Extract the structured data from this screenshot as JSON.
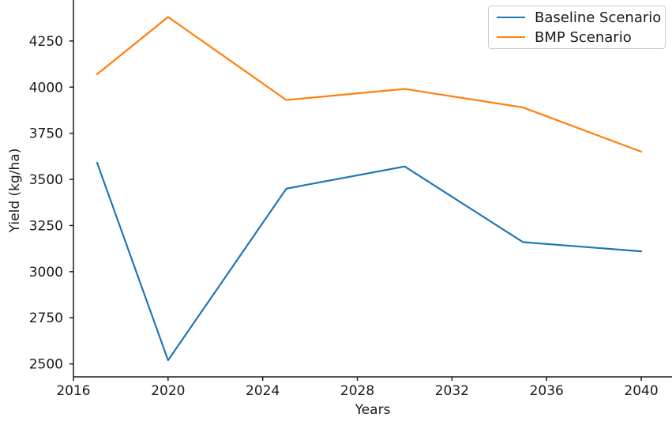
{
  "chart_data": {
    "type": "line",
    "title": "",
    "xlabel": "Years",
    "ylabel": "Yield (kg/ha)",
    "x": [
      2017,
      2020,
      2025,
      2030,
      2035,
      2040
    ],
    "series": [
      {
        "name": "Baseline Scenario",
        "color": "#1f77b4",
        "values": [
          3590,
          2520,
          3450,
          3570,
          3160,
          3110
        ]
      },
      {
        "name": "BMP Scenario",
        "color": "#ff7f0e",
        "values": [
          4070,
          4380,
          3930,
          3990,
          3890,
          3650
        ]
      }
    ],
    "xticks": [
      2016,
      2020,
      2024,
      2028,
      2032,
      2036,
      2040
    ],
    "yticks": [
      2500,
      2750,
      3000,
      3250,
      3500,
      3750,
      4000,
      4250
    ],
    "xlim": [
      2016,
      2041.3
    ],
    "ylim": [
      2430,
      4472
    ],
    "grid": false,
    "legend_position": "upper right",
    "axis_color": "#1a1a1a"
  }
}
